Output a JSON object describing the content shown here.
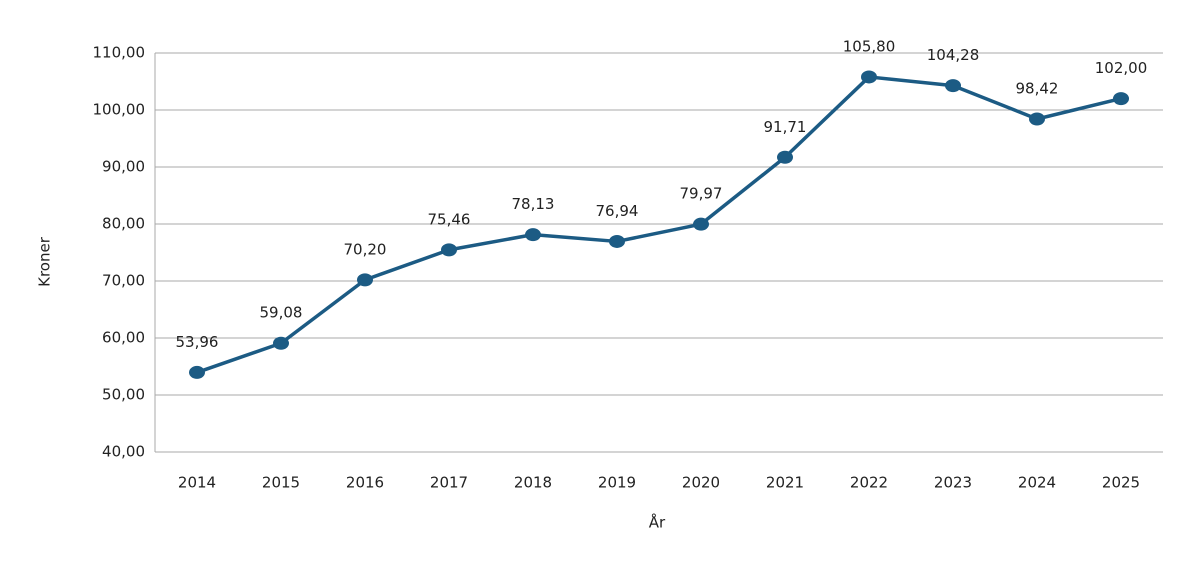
{
  "chart_data": {
    "type": "line",
    "categories": [
      "2014",
      "2015",
      "2016",
      "2017",
      "2018",
      "2019",
      "2020",
      "2021",
      "2022",
      "2023",
      "2024",
      "2025"
    ],
    "series": [
      {
        "name": "Kroner",
        "color": "#1c5b84",
        "values": [
          53.96,
          59.08,
          70.2,
          75.46,
          78.13,
          76.94,
          79.97,
          91.71,
          105.8,
          104.28,
          98.42,
          102.0
        ],
        "value_labels": [
          "53,96",
          "59,08",
          "70,20",
          "75,46",
          "78,13",
          "76,94",
          "79,97",
          "91,71",
          "105,80",
          "104,28",
          "98,42",
          "102,00"
        ]
      }
    ],
    "ylim": [
      40,
      110
    ],
    "yticks": [
      {
        "value": 40,
        "label": "40,00"
      },
      {
        "value": 50,
        "label": "50,00"
      },
      {
        "value": 60,
        "label": "60,00"
      },
      {
        "value": 70,
        "label": "70,00"
      },
      {
        "value": 80,
        "label": "80,00"
      },
      {
        "value": 90,
        "label": "90,00"
      },
      {
        "value": 100,
        "label": "100,00"
      },
      {
        "value": 110,
        "label": "110,00"
      }
    ],
    "y_label": "Kroner",
    "x_label": "År",
    "grid": true
  }
}
